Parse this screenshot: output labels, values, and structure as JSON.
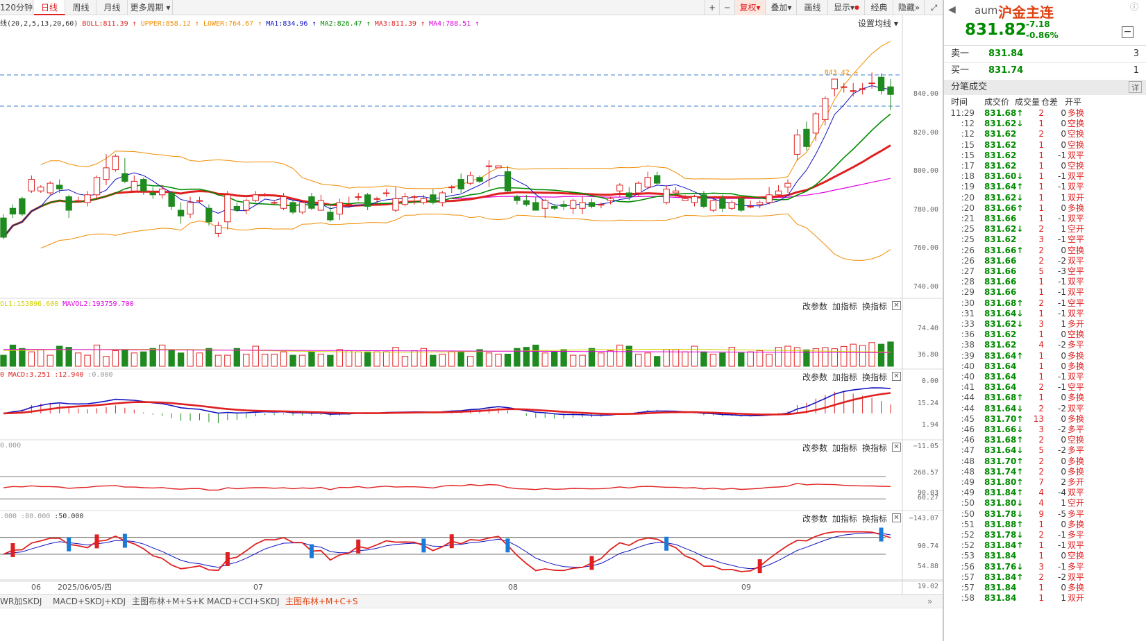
{
  "toolbar": {
    "period_tabs": [
      "120分钟",
      "日线",
      "周线",
      "月线",
      "更多周期"
    ],
    "active_tab": "日线",
    "right_buttons": [
      "+",
      "−",
      "复权",
      "叠加",
      "画线",
      "显示",
      "经典",
      "隐藏"
    ]
  },
  "legend": {
    "main": [
      {
        "text": "线(20,2,5,13,20,60)",
        "color": "#333333"
      },
      {
        "text": "BOLL:811.39",
        "color": "#e02020"
      },
      {
        "text": "UPPER:858.12",
        "color": "#f08c00"
      },
      {
        "text": "LOWER:764.67",
        "color": "#f08c00"
      },
      {
        "text": "MA1:834.96",
        "color": "#1010c0"
      },
      {
        "text": "MA2:826.47",
        "color": "#008a00"
      },
      {
        "text": "MA3:811.39",
        "color": "#e02020"
      },
      {
        "text": "MA4:788.51",
        "color": "#e000e0"
      }
    ],
    "setting": "设置均线",
    "vol": [
      {
        "text": "OL1:153896.600",
        "color": "#d0d000"
      },
      {
        "text": "MAVOL2:193759.700",
        "color": "#e000e0"
      }
    ],
    "macd": [
      {
        "text": "0",
        "color": "#e02020"
      },
      {
        "text": "MACD:3.251",
        "color": "#e02020"
      },
      {
        "text": ":12.940",
        "color": "#e02020"
      },
      {
        "text": ":0.000",
        "color": "#999999"
      }
    ],
    "cci": [
      {
        "text": "0.000",
        "color": "#999999"
      }
    ],
    "kdj": [
      {
        "text": ".000",
        "color": "#999999"
      },
      {
        "text": ":80.000",
        "color": "#999999"
      },
      {
        "text": ":50.000",
        "color": "#333333"
      }
    ],
    "panel_buttons": [
      "改参数",
      "加指标",
      "换指标"
    ]
  },
  "axes": {
    "price_ticks": [
      "840.00",
      "820.00",
      "800.00",
      "780.00",
      "760.00",
      "740.00"
    ],
    "high_marker": "843.42",
    "vol_ticks": [
      "74.40",
      "36.80",
      "0.00"
    ],
    "macd_ticks": [
      "15.24",
      "1.94",
      "−11.05"
    ],
    "cci_ticks": [
      "268.57",
      "90.03",
      "60.27",
      "−143.07"
    ],
    "kdj_ticks": [
      "90.74",
      "54.88",
      "19.02"
    ],
    "x_ticks": [
      "06",
      "2025/06/05/四",
      "07",
      "08",
      "09"
    ]
  },
  "bottom_tabs": [
    "WR加SKDJ",
    "MACD+SKDJ+KDJ",
    "主图布林+M+S+K",
    "MACD+CCI+SKDJ",
    "主图布林+M+C+S"
  ],
  "bottom_active": "主图布林+M+C+S",
  "right_panel": {
    "symbol": "aum",
    "name": "沪金主连",
    "price": "831.82",
    "change": "-7.18",
    "change_pct": "-0.86%",
    "sell_label": "卖一",
    "sell_price": "831.84",
    "sell_vol": "3",
    "buy_label": "买一",
    "buy_price": "831.74",
    "buy_vol": "1",
    "trades_title": "分笔成交",
    "detail_btn": "详",
    "headers": [
      "时间",
      "成交价",
      "成交量",
      "仓差",
      "开平"
    ],
    "trades": [
      {
        "t": "11:29",
        "p": "831.68",
        "a": "up",
        "v": "2",
        "oi": "0",
        "type": "多换"
      },
      {
        "t": ":12",
        "p": "831.62",
        "a": "down",
        "v": "1",
        "oi": "0",
        "type": "空换"
      },
      {
        "t": ":12",
        "p": "831.62",
        "a": "",
        "v": "2",
        "oi": "0",
        "type": "空换"
      },
      {
        "t": ":15",
        "p": "831.62",
        "a": "",
        "v": "1",
        "oi": "0",
        "type": "空换"
      },
      {
        "t": ":15",
        "p": "831.62",
        "a": "",
        "v": "1",
        "oi": "-1",
        "type": "双平"
      },
      {
        "t": ":17",
        "p": "831.62",
        "a": "",
        "v": "1",
        "oi": "0",
        "type": "空换"
      },
      {
        "t": ":18",
        "p": "831.60",
        "a": "down",
        "v": "1",
        "oi": "-1",
        "type": "双平"
      },
      {
        "t": ":19",
        "p": "831.64",
        "a": "up",
        "v": "1",
        "oi": "-1",
        "type": "双平"
      },
      {
        "t": ":20",
        "p": "831.62",
        "a": "down",
        "v": "1",
        "oi": "1",
        "type": "双开"
      },
      {
        "t": ":20",
        "p": "831.66",
        "a": "up",
        "v": "1",
        "oi": "0",
        "type": "多换"
      },
      {
        "t": ":21",
        "p": "831.66",
        "a": "",
        "v": "1",
        "oi": "-1",
        "type": "双平"
      },
      {
        "t": ":25",
        "p": "831.62",
        "a": "down",
        "v": "2",
        "oi": "1",
        "type": "空开"
      },
      {
        "t": ":25",
        "p": "831.62",
        "a": "",
        "v": "3",
        "oi": "-1",
        "type": "空平"
      },
      {
        "t": ":26",
        "p": "831.66",
        "a": "up",
        "v": "2",
        "oi": "0",
        "type": "空换"
      },
      {
        "t": ":26",
        "p": "831.66",
        "a": "",
        "v": "2",
        "oi": "-2",
        "type": "双平"
      },
      {
        "t": ":27",
        "p": "831.66",
        "a": "",
        "v": "5",
        "oi": "-3",
        "type": "空平"
      },
      {
        "t": ":28",
        "p": "831.66",
        "a": "",
        "v": "1",
        "oi": "-1",
        "type": "双平"
      },
      {
        "t": ":29",
        "p": "831.66",
        "a": "",
        "v": "1",
        "oi": "-1",
        "type": "双平"
      },
      {
        "t": ":30",
        "p": "831.68",
        "a": "up",
        "v": "2",
        "oi": "-1",
        "type": "空平"
      },
      {
        "t": ":31",
        "p": "831.64",
        "a": "down",
        "v": "1",
        "oi": "-1",
        "type": "双平"
      },
      {
        "t": ":33",
        "p": "831.62",
        "a": "down",
        "v": "3",
        "oi": "1",
        "type": "多开"
      },
      {
        "t": ":36",
        "p": "831.62",
        "a": "",
        "v": "1",
        "oi": "0",
        "type": "空换"
      },
      {
        "t": ":38",
        "p": "831.62",
        "a": "",
        "v": "4",
        "oi": "-2",
        "type": "多平"
      },
      {
        "t": ":39",
        "p": "831.64",
        "a": "up",
        "v": "1",
        "oi": "0",
        "type": "多换"
      },
      {
        "t": ":40",
        "p": "831.64",
        "a": "",
        "v": "1",
        "oi": "0",
        "type": "多换"
      },
      {
        "t": ":40",
        "p": "831.64",
        "a": "",
        "v": "1",
        "oi": "-1",
        "type": "双平"
      },
      {
        "t": ":41",
        "p": "831.64",
        "a": "",
        "v": "2",
        "oi": "-1",
        "type": "空平"
      },
      {
        "t": ":44",
        "p": "831.68",
        "a": "up",
        "v": "1",
        "oi": "0",
        "type": "多换"
      },
      {
        "t": ":44",
        "p": "831.64",
        "a": "down",
        "v": "2",
        "oi": "-2",
        "type": "双平"
      },
      {
        "t": ":45",
        "p": "831.70",
        "a": "up",
        "v": "13",
        "oi": "0",
        "type": "多换"
      },
      {
        "t": ":46",
        "p": "831.66",
        "a": "down",
        "v": "3",
        "oi": "-2",
        "type": "多平"
      },
      {
        "t": ":46",
        "p": "831.68",
        "a": "up",
        "v": "2",
        "oi": "0",
        "type": "空换"
      },
      {
        "t": ":47",
        "p": "831.64",
        "a": "down",
        "v": "5",
        "oi": "-2",
        "type": "多平"
      },
      {
        "t": ":48",
        "p": "831.70",
        "a": "up",
        "v": "2",
        "oi": "0",
        "type": "多换"
      },
      {
        "t": ":48",
        "p": "831.74",
        "a": "up",
        "v": "2",
        "oi": "0",
        "type": "多换"
      },
      {
        "t": ":49",
        "p": "831.80",
        "a": "up",
        "v": "7",
        "oi": "2",
        "type": "多开"
      },
      {
        "t": ":49",
        "p": "831.84",
        "a": "up",
        "v": "4",
        "oi": "-4",
        "type": "双平"
      },
      {
        "t": ":50",
        "p": "831.80",
        "a": "down",
        "v": "4",
        "oi": "1",
        "type": "空开"
      },
      {
        "t": ":50",
        "p": "831.78",
        "a": "down",
        "v": "9",
        "oi": "-5",
        "type": "多平"
      },
      {
        "t": ":51",
        "p": "831.88",
        "a": "up",
        "v": "1",
        "oi": "0",
        "type": "多换"
      },
      {
        "t": ":52",
        "p": "831.78",
        "a": "down",
        "v": "2",
        "oi": "-1",
        "type": "多平"
      },
      {
        "t": ":52",
        "p": "831.84",
        "a": "up",
        "v": "1",
        "oi": "-1",
        "type": "双平"
      },
      {
        "t": ":53",
        "p": "831.84",
        "a": "",
        "v": "1",
        "oi": "0",
        "type": "空换"
      },
      {
        "t": ":56",
        "p": "831.76",
        "a": "down",
        "v": "3",
        "oi": "-1",
        "type": "多平"
      },
      {
        "t": ":57",
        "p": "831.84",
        "a": "up",
        "v": "2",
        "oi": "-2",
        "type": "双平"
      },
      {
        "t": ":57",
        "p": "831.84",
        "a": "",
        "v": "1",
        "oi": "0",
        "type": "多换"
      },
      {
        "t": ":58",
        "p": "831.84",
        "a": "",
        "v": "1",
        "oi": "1",
        "type": "双开"
      }
    ]
  },
  "chart_data": {
    "type": "candlestick",
    "candles": [
      [
        768,
        758,
        770,
        757
      ],
      [
        773,
        770,
        775,
        768
      ],
      [
        778,
        770,
        779,
        769
      ],
      [
        782,
        788,
        790,
        781
      ],
      [
        782,
        784,
        785,
        781
      ],
      [
        781,
        786,
        787,
        780
      ],
      [
        785,
        783,
        788,
        781
      ],
      [
        779,
        772,
        780,
        768
      ],
      [
        777,
        777,
        779,
        776
      ],
      [
        776,
        780,
        782,
        774
      ],
      [
        780,
        789,
        790,
        778
      ],
      [
        788,
        794,
        801,
        785
      ],
      [
        793,
        800,
        801,
        792
      ],
      [
        791,
        787,
        799,
        786
      ],
      [
        782,
        787,
        790,
        781
      ],
      [
        788,
        782,
        789,
        780
      ],
      [
        781,
        780,
        784,
        778
      ],
      [
        780,
        783,
        785,
        778
      ],
      [
        781,
        774,
        782,
        772
      ],
      [
        772,
        769,
        776,
        765
      ],
      [
        770,
        776,
        779,
        768
      ],
      [
        777,
        777,
        779,
        776
      ],
      [
        773,
        766,
        775,
        764
      ],
      [
        760,
        764,
        766,
        758
      ],
      [
        766,
        780,
        782,
        762
      ],
      [
        774,
        772,
        776,
        771
      ],
      [
        772,
        777,
        778,
        770
      ],
      [
        777,
        780,
        782,
        776
      ],
      [
        780,
        780,
        781,
        779
      ],
      [
        776,
        776,
        777,
        775
      ],
      [
        773,
        779,
        781,
        772
      ],
      [
        776,
        771,
        777,
        770
      ],
      [
        771,
        776,
        777,
        770
      ],
      [
        779,
        773,
        781,
        772
      ],
      [
        772,
        777,
        780,
        772
      ],
      [
        771,
        767,
        774,
        766
      ],
      [
        770,
        776,
        778,
        767
      ],
      [
        775,
        775,
        779,
        774
      ],
      [
        779,
        779,
        781,
        777
      ],
      [
        780,
        774,
        781,
        772
      ],
      [
        778,
        778,
        779,
        775
      ],
      [
        781,
        781,
        783,
        779
      ],
      [
        772,
        778,
        784,
        771
      ],
      [
        775,
        779,
        781,
        774
      ],
      [
        779,
        779,
        780,
        775
      ],
      [
        776,
        778,
        780,
        775
      ],
      [
        780,
        776,
        783,
        775
      ],
      [
        776,
        781,
        782,
        774
      ],
      [
        784,
        784,
        785,
        781
      ],
      [
        788,
        783,
        791,
        781
      ],
      [
        786,
        790,
        792,
        785
      ],
      [
        789,
        787,
        790,
        786
      ],
      [
        795,
        795,
        798,
        784
      ],
      [
        794,
        795,
        795,
        794
      ],
      [
        792,
        782,
        795,
        781
      ],
      [
        779,
        777,
        780,
        775
      ],
      [
        777,
        775,
        780,
        774
      ],
      [
        776,
        772,
        779,
        773
      ],
      [
        773,
        777,
        778,
        768
      ],
      [
        774,
        773,
        775,
        772
      ],
      [
        775,
        774,
        777,
        772
      ],
      [
        773,
        777,
        778,
        770
      ],
      [
        773,
        776,
        779,
        770
      ],
      [
        776,
        774,
        778,
        773
      ],
      [
        775,
        775,
        776,
        773
      ],
      [
        777,
        778,
        779,
        775
      ],
      [
        782,
        785,
        786,
        779
      ],
      [
        781,
        779,
        784,
        777
      ],
      [
        781,
        786,
        787,
        779
      ],
      [
        784,
        789,
        792,
        783
      ],
      [
        790,
        786,
        792,
        785
      ],
      [
        776,
        783,
        785,
        775
      ],
      [
        781,
        782,
        784,
        779
      ],
      [
        777,
        778,
        780,
        777
      ],
      [
        776,
        779,
        780,
        774
      ],
      [
        780,
        774,
        782,
        773
      ],
      [
        772,
        777,
        779,
        771
      ],
      [
        778,
        773,
        780,
        771
      ],
      [
        773,
        776,
        777,
        772
      ],
      [
        778,
        772,
        779,
        771
      ],
      [
        774,
        774,
        777,
        773
      ],
      [
        775,
        776,
        777,
        773
      ],
      [
        776,
        780,
        784,
        775
      ],
      [
        780,
        782,
        785,
        779
      ],
      [
        784,
        786,
        788,
        781
      ],
      [
        801,
        811,
        814,
        798
      ],
      [
        814,
        805,
        818,
        803
      ],
      [
        812,
        822,
        823,
        808
      ],
      [
        819,
        830,
        831,
        816
      ],
      [
        835,
        840,
        840,
        831
      ],
      [
        836,
        836,
        838,
        833
      ],
      [
        834,
        834,
        838,
        831
      ],
      [
        835,
        835,
        838,
        832
      ],
      [
        838,
        838,
        843.42,
        835
      ],
      [
        841,
        834,
        843,
        832
      ],
      [
        836,
        832,
        840,
        824
      ]
    ]
  }
}
